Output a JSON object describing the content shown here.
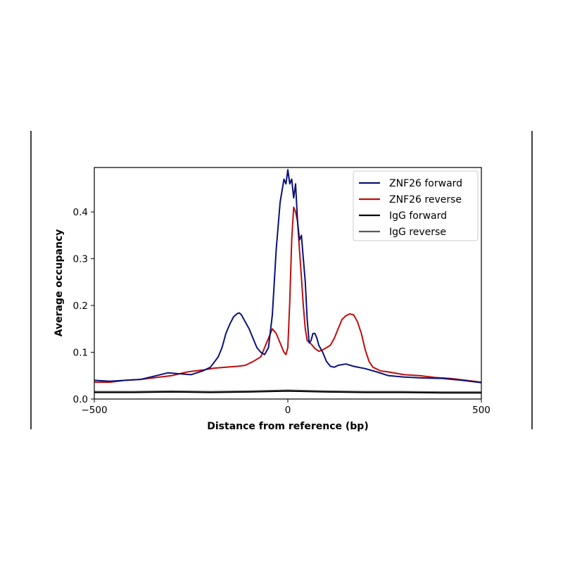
{
  "chart_data": {
    "type": "line",
    "xlabel": "Distance from reference (bp)",
    "ylabel": "Average occupancy",
    "xlim": [
      -500,
      500
    ],
    "ylim": [
      0,
      0.495
    ],
    "x_ticks": [
      -500,
      0,
      500
    ],
    "x_tick_labels": [
      "−500",
      "0",
      "500"
    ],
    "y_ticks": [
      0.0,
      0.1,
      0.2,
      0.3,
      0.4
    ],
    "y_tick_labels": [
      "0.0",
      "0.1",
      "0.2",
      "0.3",
      "0.4"
    ],
    "grid": false,
    "legend_position": "top-right",
    "series": [
      {
        "name": "ZNF26 forward",
        "color": "#0a127a",
        "x": [
          -500,
          -460,
          -420,
          -380,
          -340,
          -310,
          -280,
          -250,
          -220,
          -200,
          -180,
          -170,
          -160,
          -150,
          -140,
          -130,
          -125,
          -120,
          -110,
          -100,
          -90,
          -80,
          -70,
          -60,
          -50,
          -40,
          -30,
          -20,
          -10,
          -5,
          0,
          5,
          10,
          15,
          20,
          25,
          30,
          35,
          40,
          45,
          50,
          55,
          60,
          65,
          70,
          75,
          80,
          90,
          100,
          110,
          120,
          130,
          150,
          170,
          200,
          230,
          260,
          300,
          350,
          400,
          450,
          500
        ],
        "y": [
          0.04,
          0.038,
          0.04,
          0.042,
          0.05,
          0.056,
          0.054,
          0.052,
          0.06,
          0.068,
          0.09,
          0.11,
          0.14,
          0.16,
          0.176,
          0.183,
          0.184,
          0.18,
          0.165,
          0.15,
          0.13,
          0.11,
          0.1,
          0.095,
          0.11,
          0.18,
          0.32,
          0.42,
          0.47,
          0.46,
          0.49,
          0.46,
          0.47,
          0.43,
          0.46,
          0.38,
          0.34,
          0.35,
          0.3,
          0.25,
          0.17,
          0.12,
          0.125,
          0.14,
          0.14,
          0.13,
          0.115,
          0.1,
          0.08,
          0.07,
          0.068,
          0.072,
          0.075,
          0.07,
          0.065,
          0.058,
          0.05,
          0.047,
          0.045,
          0.044,
          0.04,
          0.035
        ]
      },
      {
        "name": "ZNF26 reverse",
        "color": "#bf0d0d",
        "x": [
          -500,
          -460,
          -420,
          -380,
          -340,
          -300,
          -260,
          -220,
          -190,
          -160,
          -130,
          -110,
          -90,
          -70,
          -50,
          -40,
          -30,
          -20,
          -10,
          -5,
          0,
          5,
          10,
          15,
          20,
          25,
          30,
          35,
          40,
          45,
          50,
          60,
          70,
          80,
          90,
          100,
          110,
          120,
          130,
          140,
          150,
          160,
          170,
          180,
          190,
          200,
          210,
          220,
          240,
          260,
          300,
          340,
          380,
          420,
          460,
          500
        ],
        "y": [
          0.036,
          0.036,
          0.04,
          0.042,
          0.046,
          0.05,
          0.058,
          0.062,
          0.066,
          0.068,
          0.07,
          0.072,
          0.08,
          0.09,
          0.13,
          0.15,
          0.14,
          0.12,
          0.1,
          0.095,
          0.11,
          0.21,
          0.34,
          0.41,
          0.4,
          0.38,
          0.32,
          0.26,
          0.2,
          0.15,
          0.125,
          0.118,
          0.108,
          0.102,
          0.105,
          0.11,
          0.115,
          0.13,
          0.15,
          0.17,
          0.178,
          0.182,
          0.18,
          0.165,
          0.14,
          0.105,
          0.08,
          0.068,
          0.06,
          0.058,
          0.052,
          0.05,
          0.046,
          0.044,
          0.04,
          0.036
        ]
      },
      {
        "name": "IgG forward",
        "color": "#000000",
        "x": [
          -500,
          -400,
          -300,
          -200,
          -100,
          -50,
          0,
          50,
          100,
          200,
          300,
          400,
          500
        ],
        "y": [
          0.014,
          0.014,
          0.015,
          0.014,
          0.015,
          0.016,
          0.017,
          0.016,
          0.015,
          0.014,
          0.014,
          0.013,
          0.013
        ]
      },
      {
        "name": "IgG reverse",
        "color": "#5a5a5a",
        "x": [
          -500,
          -400,
          -300,
          -200,
          -100,
          -50,
          0,
          50,
          100,
          200,
          300,
          400,
          500
        ],
        "y": [
          0.016,
          0.016,
          0.017,
          0.016,
          0.017,
          0.018,
          0.019,
          0.018,
          0.017,
          0.016,
          0.016,
          0.015,
          0.015
        ]
      }
    ]
  }
}
